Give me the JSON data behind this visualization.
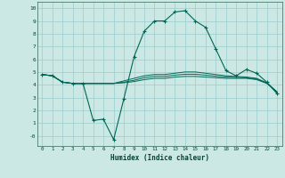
{
  "xlabel": "Humidex (Indice chaleur)",
  "background_color": "#cce8e4",
  "grid_color": "#99cccc",
  "line_color": "#006655",
  "xlim": [
    -0.5,
    23.5
  ],
  "ylim": [
    -0.8,
    10.5
  ],
  "xticks": [
    0,
    1,
    2,
    3,
    4,
    5,
    6,
    7,
    8,
    9,
    10,
    11,
    12,
    13,
    14,
    15,
    16,
    17,
    18,
    19,
    20,
    21,
    22,
    23
  ],
  "yticks": [
    0,
    1,
    2,
    3,
    4,
    5,
    6,
    7,
    8,
    9,
    10
  ],
  "ytick_labels": [
    "-0",
    "1",
    "2",
    "3",
    "4",
    "5",
    "6",
    "7",
    "8",
    "9",
    "10"
  ],
  "curve1_x": [
    0,
    1,
    2,
    3,
    4,
    5,
    6,
    7,
    8,
    9,
    10,
    11,
    12,
    13,
    14,
    15,
    16,
    17,
    18,
    19,
    20,
    21,
    22,
    23
  ],
  "curve1_y": [
    4.8,
    4.7,
    4.2,
    4.1,
    4.1,
    1.2,
    1.3,
    -0.3,
    2.9,
    6.2,
    8.2,
    9.0,
    9.0,
    9.7,
    9.8,
    9.0,
    8.5,
    6.8,
    5.1,
    4.7,
    5.2,
    4.9,
    4.2,
    3.3
  ],
  "curve2_x": [
    0,
    1,
    2,
    3,
    4,
    5,
    6,
    7,
    8,
    9,
    10,
    11,
    12,
    13,
    14,
    15,
    16,
    17,
    18,
    19,
    20,
    21,
    22,
    23
  ],
  "curve2_y": [
    4.8,
    4.7,
    4.2,
    4.1,
    4.1,
    4.1,
    4.1,
    4.1,
    4.15,
    4.25,
    4.4,
    4.5,
    4.5,
    4.6,
    4.65,
    4.65,
    4.6,
    4.55,
    4.5,
    4.5,
    4.5,
    4.4,
    4.1,
    3.4
  ],
  "curve3_x": [
    0,
    1,
    2,
    3,
    4,
    5,
    6,
    7,
    8,
    9,
    10,
    11,
    12,
    13,
    14,
    15,
    16,
    17,
    18,
    19,
    20,
    21,
    22,
    23
  ],
  "curve3_y": [
    4.8,
    4.7,
    4.2,
    4.1,
    4.1,
    4.1,
    4.1,
    4.1,
    4.3,
    4.5,
    4.7,
    4.8,
    4.8,
    4.9,
    5.0,
    5.0,
    4.9,
    4.8,
    4.7,
    4.65,
    4.6,
    4.5,
    4.15,
    3.45
  ],
  "curve4_x": [
    0,
    1,
    2,
    3,
    4,
    5,
    6,
    7,
    8,
    9,
    10,
    11,
    12,
    13,
    14,
    15,
    16,
    17,
    18,
    19,
    20,
    21,
    22,
    23
  ],
  "curve4_y": [
    4.8,
    4.7,
    4.2,
    4.1,
    4.1,
    4.1,
    4.1,
    4.1,
    4.2,
    4.35,
    4.55,
    4.65,
    4.65,
    4.75,
    4.82,
    4.82,
    4.75,
    4.67,
    4.6,
    4.57,
    4.55,
    4.45,
    4.12,
    3.42
  ]
}
